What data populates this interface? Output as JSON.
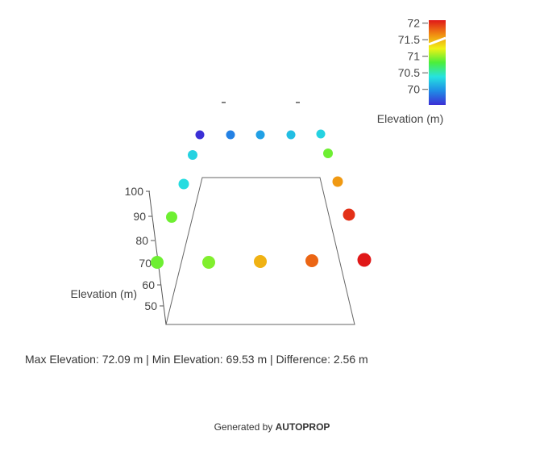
{
  "chart_data": {
    "type": "scatter3d",
    "z_axis": {
      "label": "Elevation (m)",
      "ticks": [
        "50",
        "60",
        "70",
        "80",
        "90",
        "100"
      ]
    },
    "colorbar": {
      "title": "Elevation (m)",
      "ticks": [
        "70",
        "70.5",
        "71",
        "71.5",
        "72"
      ],
      "range": [
        69.53,
        72.09
      ],
      "colorscale": [
        "#3b2fd6",
        "#1f8de6",
        "#26e3e0",
        "#4bee3a",
        "#f0f214",
        "#f08a12",
        "#e01818"
      ]
    },
    "points": [
      {
        "id": "p1",
        "elevation": 69.53
      },
      {
        "id": "p2",
        "elevation": 69.9
      },
      {
        "id": "p3",
        "elevation": 70.05
      },
      {
        "id": "p4",
        "elevation": 70.2
      },
      {
        "id": "p5",
        "elevation": 70.3
      },
      {
        "id": "p6",
        "elevation": 70.9
      },
      {
        "id": "p7",
        "elevation": 71.6
      },
      {
        "id": "p8",
        "elevation": 72.0
      },
      {
        "id": "p9",
        "elevation": 72.09
      },
      {
        "id": "p10",
        "elevation": 71.8
      },
      {
        "id": "p11",
        "elevation": 71.5
      },
      {
        "id": "p12",
        "elevation": 70.95
      },
      {
        "id": "p13",
        "elevation": 70.9
      },
      {
        "id": "p14",
        "elevation": 70.9
      },
      {
        "id": "p15",
        "elevation": 70.35
      },
      {
        "id": "p16",
        "elevation": 70.3
      }
    ]
  },
  "stats": {
    "text": "Max Elevation: 72.09 m | Min Elevation: 69.53 m | Difference: 2.56 m"
  },
  "footer": {
    "prefix": "Generated by",
    "brand": "AUTOPROP"
  }
}
